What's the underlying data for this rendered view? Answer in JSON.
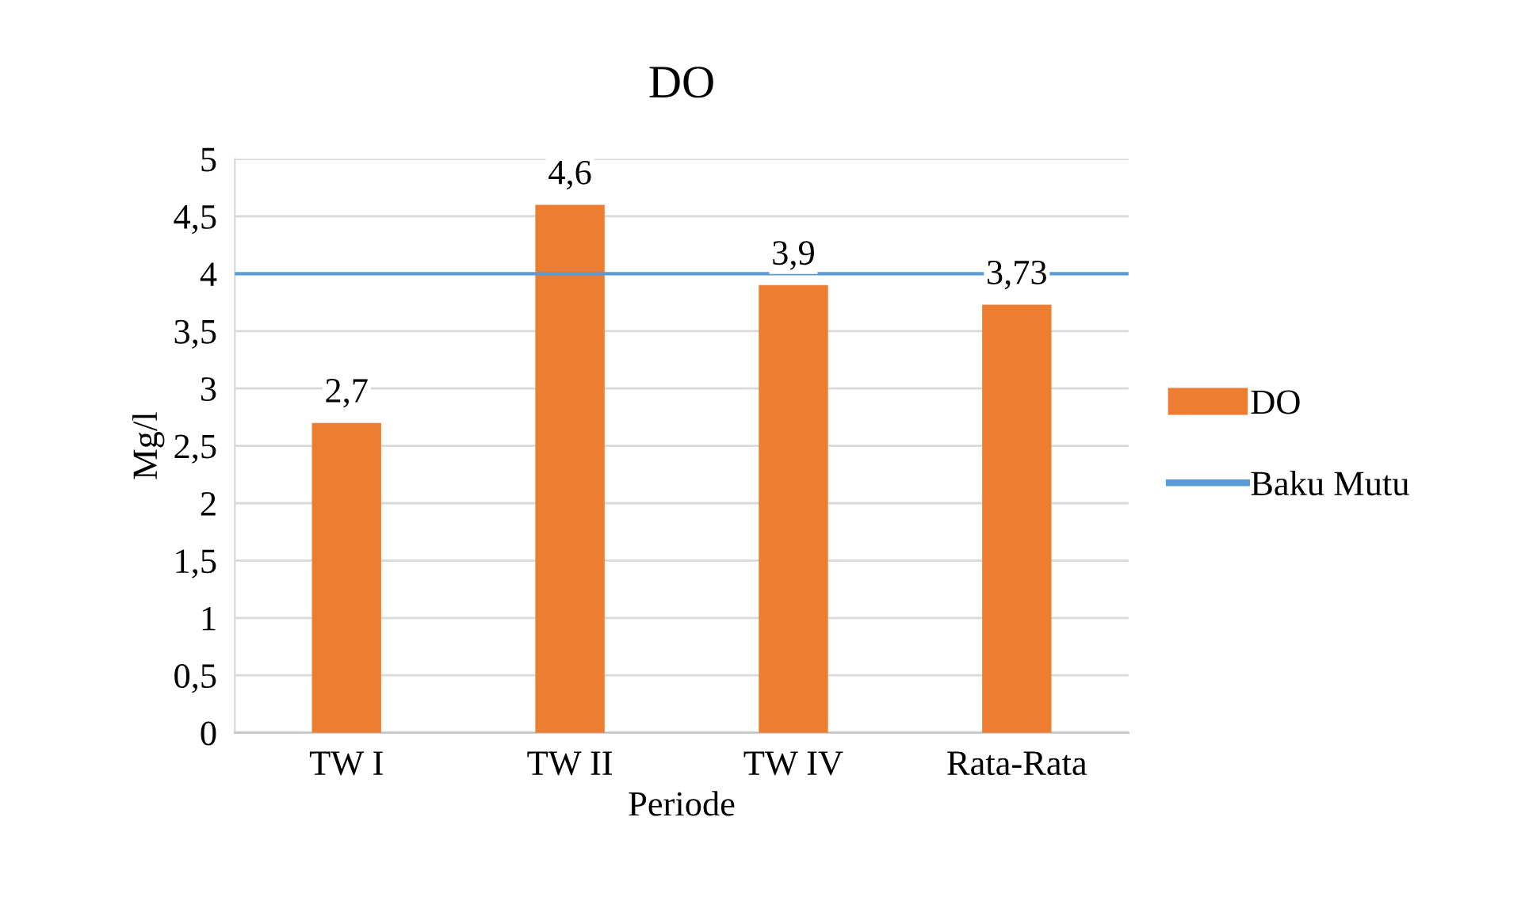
{
  "chart_data": {
    "type": "bar",
    "title": "DO",
    "xlabel": "Periode",
    "ylabel": "Mg/l",
    "categories": [
      "TW I",
      "TW II",
      "TW IV",
      "Rata-Rata"
    ],
    "series": [
      {
        "name": "DO",
        "color": "#ed7d31",
        "values": [
          2.7,
          4.6,
          3.9,
          3.73
        ],
        "value_labels": [
          "2,7",
          "4,6",
          "3,9",
          "3,73"
        ]
      }
    ],
    "ylim": [
      0,
      5
    ],
    "yticks": [
      0,
      {
        "value": 0.5,
        "label": "0,5"
      },
      1,
      {
        "value": 1.5,
        "label": "1,5"
      },
      2,
      {
        "value": 2.5,
        "label": "2,5"
      },
      3,
      {
        "value": 3.5,
        "label": "3,5"
      },
      4,
      {
        "value": 4.5,
        "label": "4,5"
      },
      5
    ],
    "ref_lines": [
      {
        "axis": "y",
        "value": 4,
        "label": "Baku Mutu",
        "color": "#5b9bd5"
      }
    ],
    "grid": "y",
    "legend": "right"
  }
}
